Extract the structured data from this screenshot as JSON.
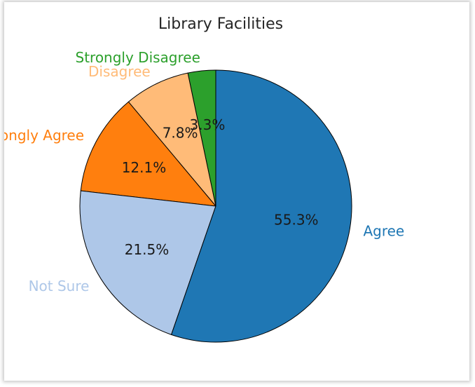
{
  "chart_data": {
    "type": "pie",
    "title": "Library Facilities",
    "start_angle_deg": 90,
    "direction": "counterclockwise",
    "slices": [
      {
        "label": "Strongly Disagree",
        "value": 3.3,
        "pct_label": "3.3%",
        "color": "#2ca02c"
      },
      {
        "label": "Disagree",
        "value": 7.8,
        "pct_label": "7.8%",
        "color": "#ffbb78"
      },
      {
        "label": "Strongly Agree",
        "value": 12.1,
        "pct_label": "12.1%",
        "color": "#ff7f0e"
      },
      {
        "label": "Not Sure",
        "value": 21.5,
        "pct_label": "21.5%",
        "color": "#aec7e8"
      },
      {
        "label": "Agree",
        "value": 55.3,
        "pct_label": "55.3%",
        "color": "#1f77b4"
      }
    ],
    "edge_color": "#000000"
  }
}
